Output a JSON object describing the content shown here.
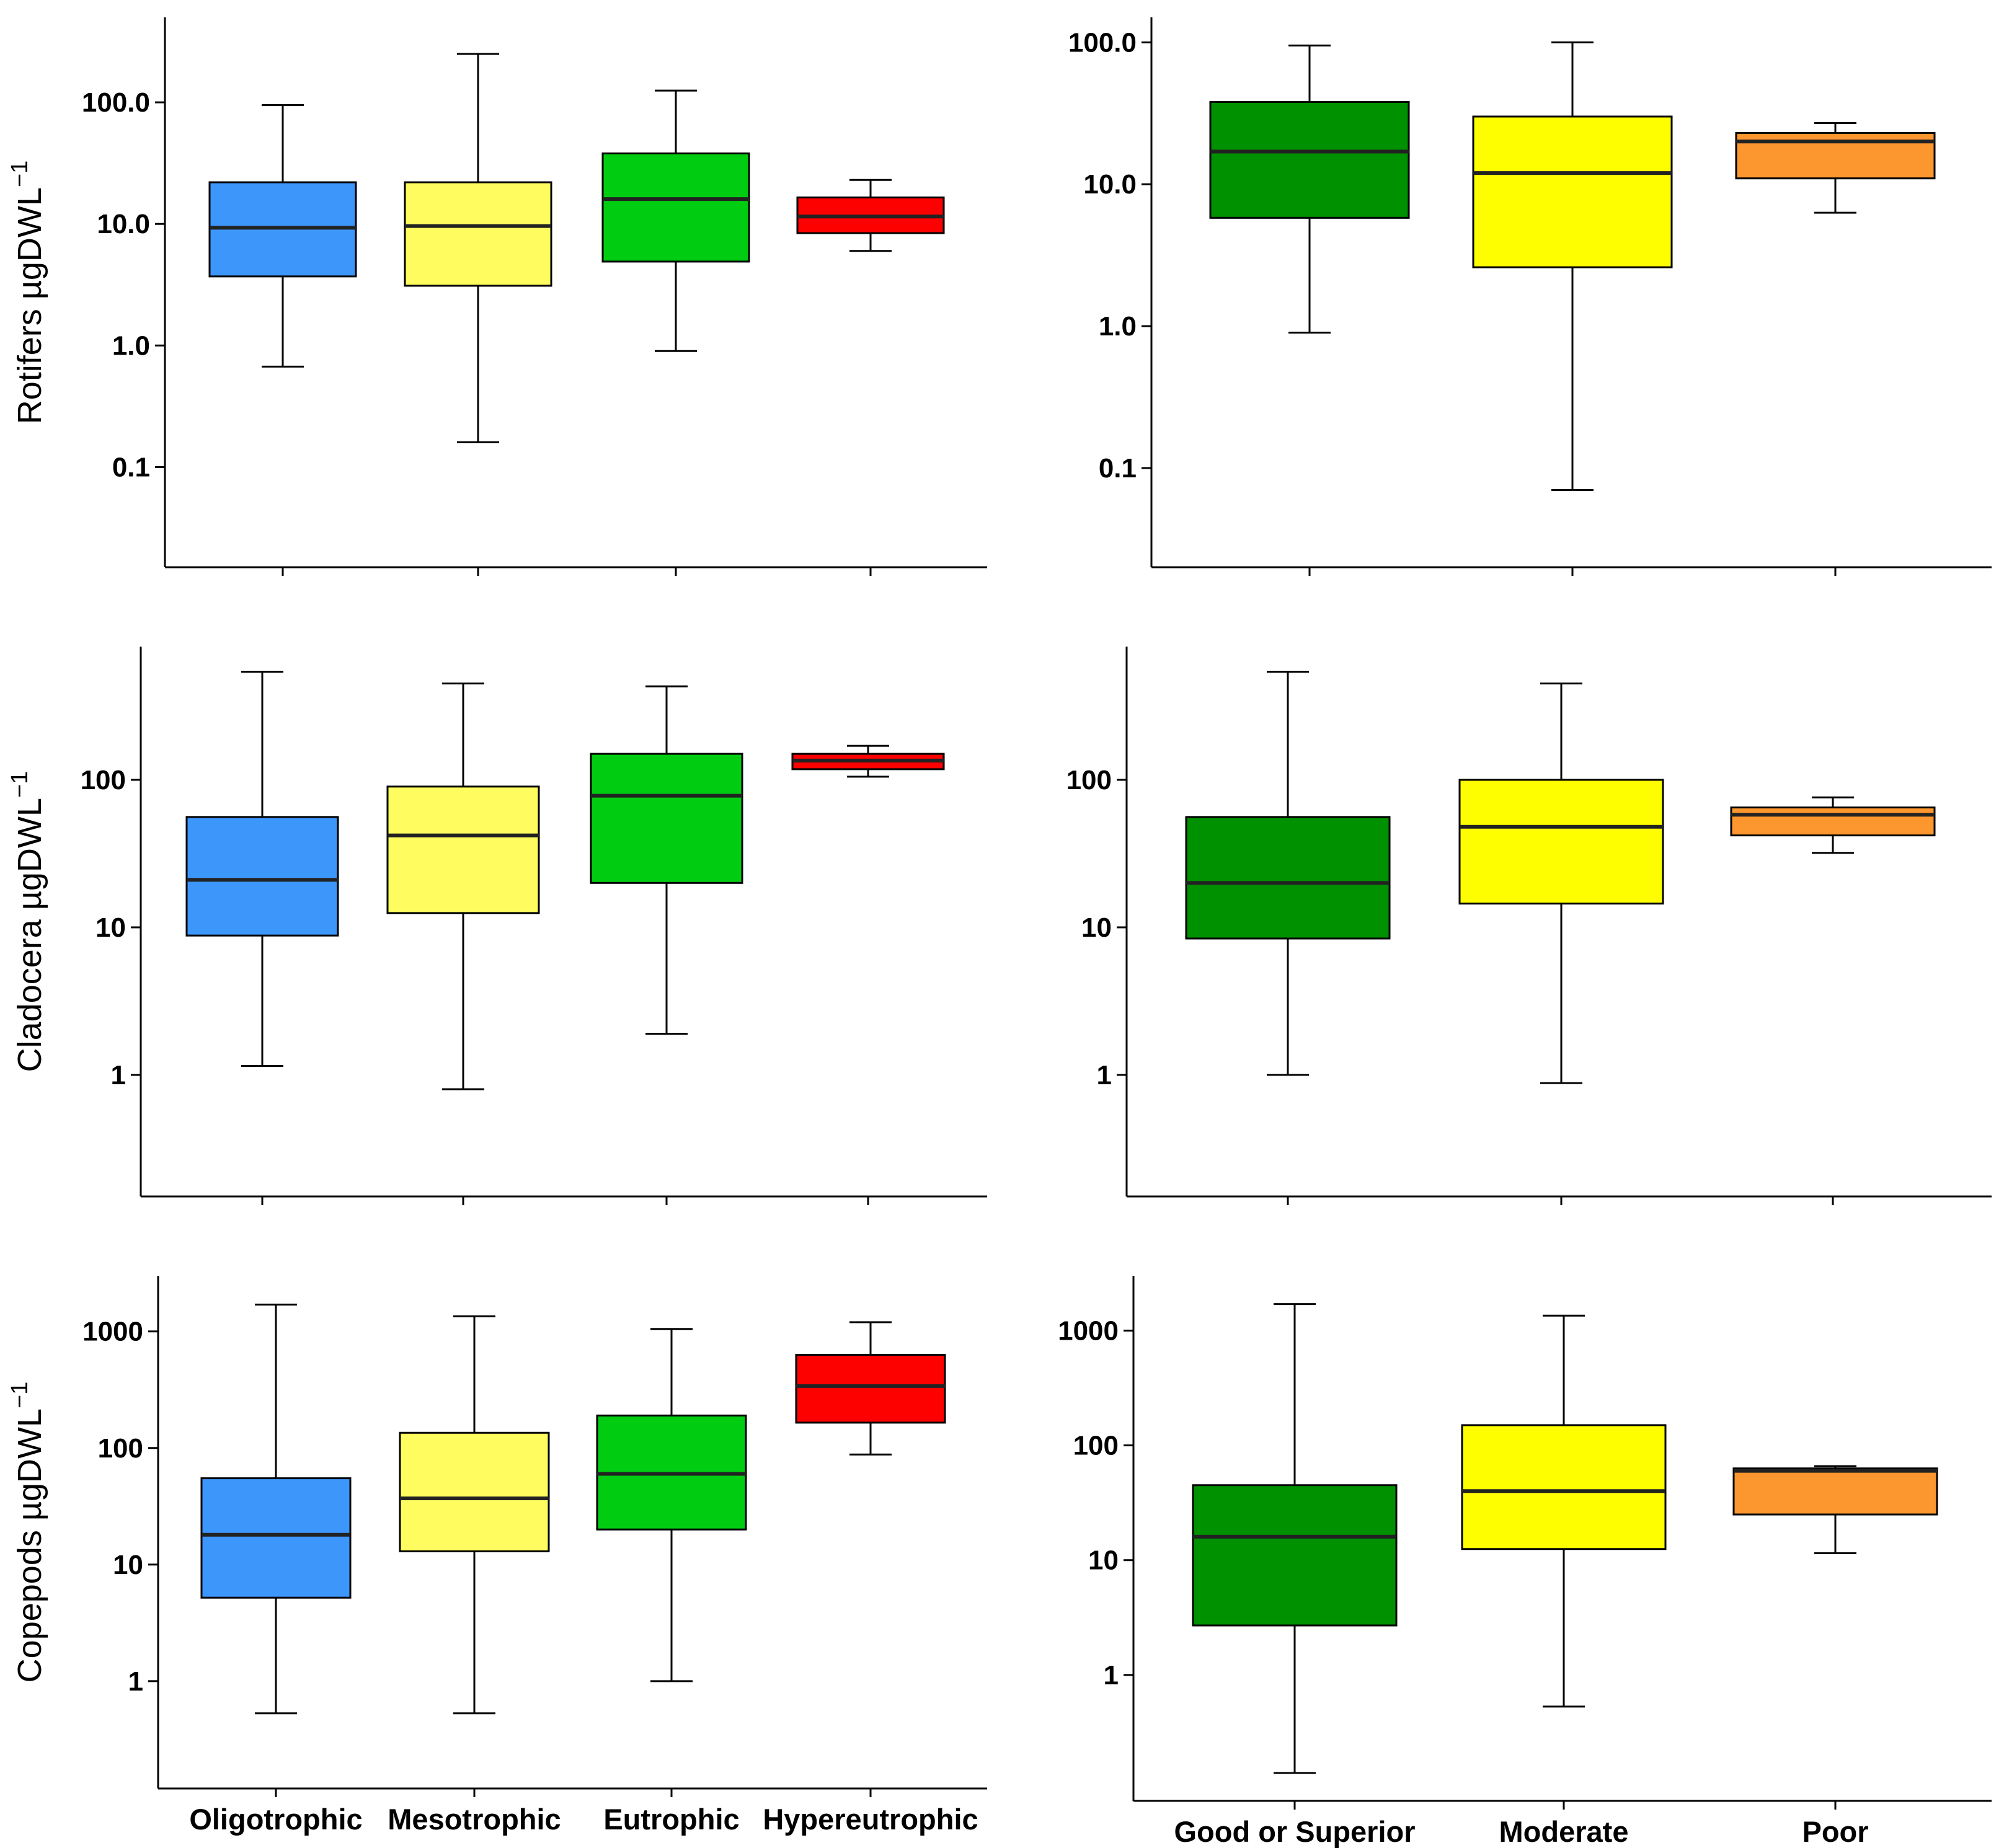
{
  "colors": {
    "oligotrophic": "#3D96FA",
    "mesotrophic": "#FEFC5E",
    "eutrophic": "#00CD12",
    "hypereutrophic": "#FD0000",
    "good_or_superior": "#009100",
    "moderate": "#FEFE00",
    "poor": "#FC962E"
  },
  "chart_data": [
    {
      "type": "box",
      "id": "rotifers_trophic",
      "ylabel": "Rotifers µgDWL",
      "ylabel_sup": "−1",
      "yscale": "log",
      "ylim": [
        0.015,
        500
      ],
      "yticks": [
        0.1,
        1.0,
        10.0,
        100.0
      ],
      "ytick_labels": [
        "0.1",
        "1.0",
        "10.0",
        "100.0"
      ],
      "categories": [
        "Oligotrophic",
        "Mesotrophic",
        "Eutrophic",
        "Hypereutrophic"
      ],
      "show_category_labels": false,
      "color_keys": [
        "oligotrophic",
        "mesotrophic",
        "eutrophic",
        "hypereutrophic"
      ],
      "boxes": [
        {
          "min": 0.67,
          "q1": 3.7,
          "median": 9.3,
          "q3": 22,
          "max": 95
        },
        {
          "min": 0.16,
          "q1": 3.1,
          "median": 9.6,
          "q3": 22,
          "max": 250
        },
        {
          "min": 0.9,
          "q1": 4.9,
          "median": 16,
          "q3": 38,
          "max": 125
        },
        {
          "min": 6.0,
          "q1": 8.4,
          "median": 11.5,
          "q3": 16.5,
          "max": 23
        }
      ]
    },
    {
      "type": "box",
      "id": "rotifers_status",
      "ylabel": "",
      "yscale": "log",
      "ylim": [
        0.02,
        150
      ],
      "yticks": [
        0.1,
        1.0,
        10.0,
        100.0
      ],
      "ytick_labels": [
        "0.1",
        "1.0",
        "10.0",
        "100.0"
      ],
      "categories": [
        "Good or Superior",
        "Moderate",
        "Poor"
      ],
      "show_category_labels": false,
      "color_keys": [
        "good_or_superior",
        "moderate",
        "poor"
      ],
      "boxes": [
        {
          "min": 0.9,
          "q1": 5.8,
          "median": 17,
          "q3": 38,
          "max": 95
        },
        {
          "min": 0.07,
          "q1": 2.6,
          "median": 12,
          "q3": 30,
          "max": 100
        },
        {
          "min": 6.3,
          "q1": 11,
          "median": 20,
          "q3": 23,
          "max": 27
        }
      ]
    },
    {
      "type": "box",
      "id": "cladocera_trophic",
      "ylabel": "Cladocera µgDWL",
      "ylabel_sup": "−1",
      "yscale": "log",
      "ylim": [
        0.15,
        800
      ],
      "yticks": [
        1,
        10,
        100
      ],
      "ytick_labels": [
        "1",
        "10",
        "100"
      ],
      "categories": [
        "Oligotrophic",
        "Mesotrophic",
        "Eutrophic",
        "Hypereutrophic"
      ],
      "show_category_labels": false,
      "color_keys": [
        "oligotrophic",
        "mesotrophic",
        "eutrophic",
        "hypereutrophic"
      ],
      "boxes": [
        {
          "min": 1.15,
          "q1": 8.8,
          "median": 21,
          "q3": 56,
          "max": 540
        },
        {
          "min": 0.8,
          "q1": 12.5,
          "median": 42,
          "q3": 90,
          "max": 450
        },
        {
          "min": 1.9,
          "q1": 20,
          "median": 78,
          "q3": 150,
          "max": 430
        },
        {
          "min": 105,
          "q1": 118,
          "median": 135,
          "q3": 150,
          "max": 170
        }
      ]
    },
    {
      "type": "box",
      "id": "cladocera_status",
      "ylabel": "",
      "yscale": "log",
      "ylim": [
        0.15,
        800
      ],
      "yticks": [
        1,
        10,
        100
      ],
      "ytick_labels": [
        "1",
        "10",
        "100"
      ],
      "categories": [
        "Good or Superior",
        "Moderate",
        "Poor"
      ],
      "show_category_labels": false,
      "color_keys": [
        "good_or_superior",
        "moderate",
        "poor"
      ],
      "boxes": [
        {
          "min": 1.0,
          "q1": 8.4,
          "median": 20,
          "q3": 56,
          "max": 540
        },
        {
          "min": 0.88,
          "q1": 14.5,
          "median": 48,
          "q3": 100,
          "max": 450
        },
        {
          "min": 32,
          "q1": 42,
          "median": 58,
          "q3": 65,
          "max": 76
        }
      ]
    },
    {
      "type": "box",
      "id": "copepods_trophic",
      "ylabel": "Copepods µgDWL",
      "ylabel_sup": "−1",
      "yscale": "log",
      "ylim": [
        0.12,
        3000
      ],
      "yticks": [
        1,
        10,
        100,
        1000
      ],
      "ytick_labels": [
        "1",
        "10",
        "100",
        "1000"
      ],
      "categories": [
        "Oligotrophic",
        "Mesotrophic",
        "Eutrophic",
        "Hypereutrophic"
      ],
      "show_category_labels": true,
      "color_keys": [
        "oligotrophic",
        "mesotrophic",
        "eutrophic",
        "hypereutrophic"
      ],
      "boxes": [
        {
          "min": 0.53,
          "q1": 5.2,
          "median": 18,
          "q3": 55,
          "max": 1700
        },
        {
          "min": 0.53,
          "q1": 13,
          "median": 37,
          "q3": 135,
          "max": 1350
        },
        {
          "min": 1.0,
          "q1": 20,
          "median": 60,
          "q3": 190,
          "max": 1050
        },
        {
          "min": 88,
          "q1": 165,
          "median": 340,
          "q3": 630,
          "max": 1200
        }
      ]
    },
    {
      "type": "box",
      "id": "copepods_status",
      "ylabel": "",
      "yscale": "log",
      "ylim": [
        0.08,
        3000
      ],
      "yticks": [
        1,
        10,
        100,
        1000
      ],
      "ytick_labels": [
        "1",
        "10",
        "100",
        "1000"
      ],
      "categories": [
        "Good or Superior",
        "Moderate",
        "Poor"
      ],
      "show_category_labels": true,
      "color_keys": [
        "good_or_superior",
        "moderate",
        "poor"
      ],
      "boxes": [
        {
          "min": 0.14,
          "q1": 2.7,
          "median": 16,
          "q3": 45,
          "max": 1700
        },
        {
          "min": 0.53,
          "q1": 12.5,
          "median": 40,
          "q3": 150,
          "max": 1350
        },
        {
          "min": 11.5,
          "q1": 25,
          "median": 60,
          "q3": 63,
          "max": 66
        }
      ]
    }
  ]
}
